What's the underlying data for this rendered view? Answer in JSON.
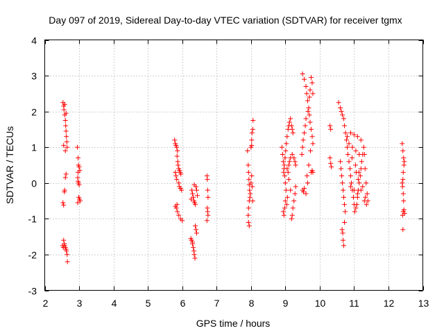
{
  "chart_data": {
    "type": "scatter",
    "title": "Day 097 of 2019, Sidereal Day-to-day VTEC variation (SDTVAR) for receiver tgmx",
    "xlabel": "GPS time / hours",
    "ylabel": "SDTVAR / TECUs",
    "xlim": [
      2,
      13
    ],
    "ylim": [
      -3,
      4
    ],
    "xticks": [
      "2",
      "3",
      "4",
      "5",
      "6",
      "7",
      "8",
      "9",
      "10",
      "11",
      "12",
      "13"
    ],
    "yticks": [
      "-3",
      "-2",
      "-1",
      "0",
      "1",
      "2",
      "3",
      "4"
    ],
    "grid": true,
    "marker": "+",
    "marker_color": "#ff0000",
    "series": [
      {
        "name": "SDTVAR",
        "points": [
          [
            2.53,
            2.25
          ],
          [
            2.55,
            2.15
          ],
          [
            2.56,
            2.05
          ],
          [
            2.58,
            1.9
          ],
          [
            2.6,
            1.75
          ],
          [
            2.61,
            1.6
          ],
          [
            2.62,
            1.45
          ],
          [
            2.63,
            1.3
          ],
          [
            2.64,
            1.15
          ],
          [
            2.65,
            1.0
          ],
          [
            2.58,
            2.2
          ],
          [
            2.62,
            1.95
          ],
          [
            2.55,
            1.05
          ],
          [
            2.6,
            0.9
          ],
          [
            2.62,
            0.25
          ],
          [
            2.6,
            0.15
          ],
          [
            2.58,
            -0.2
          ],
          [
            2.57,
            -0.25
          ],
          [
            2.53,
            -0.55
          ],
          [
            2.55,
            -0.62
          ],
          [
            2.55,
            -1.6
          ],
          [
            2.57,
            -1.7
          ],
          [
            2.58,
            -1.75
          ],
          [
            2.6,
            -1.8
          ],
          [
            2.62,
            -1.85
          ],
          [
            2.63,
            -1.9
          ],
          [
            2.65,
            -2.0
          ],
          [
            2.66,
            -2.2
          ],
          [
            2.52,
            -1.75
          ],
          [
            2.54,
            -1.8
          ],
          [
            2.95,
            1.0
          ],
          [
            2.97,
            0.7
          ],
          [
            2.98,
            0.5
          ],
          [
            3.0,
            0.45
          ],
          [
            3.02,
            0.35
          ],
          [
            2.97,
            0.3
          ],
          [
            2.96,
            0.15
          ],
          [
            2.97,
            0.05
          ],
          [
            2.98,
            0.0
          ],
          [
            3.0,
            -0.05
          ],
          [
            2.99,
            -0.4
          ],
          [
            3.01,
            -0.45
          ],
          [
            3.03,
            -0.5
          ],
          [
            2.96,
            -0.55
          ],
          [
            5.78,
            1.2
          ],
          [
            5.8,
            1.1
          ],
          [
            5.82,
            1.05
          ],
          [
            5.84,
            1.0
          ],
          [
            5.86,
            0.9
          ],
          [
            5.85,
            0.75
          ],
          [
            5.87,
            0.6
          ],
          [
            5.88,
            0.5
          ],
          [
            5.9,
            0.4
          ],
          [
            5.92,
            0.35
          ],
          [
            5.94,
            0.3
          ],
          [
            5.96,
            0.25
          ],
          [
            5.8,
            0.3
          ],
          [
            5.82,
            0.2
          ],
          [
            5.84,
            0.1
          ],
          [
            5.9,
            0.0
          ],
          [
            5.92,
            -0.1
          ],
          [
            5.95,
            -0.15
          ],
          [
            5.98,
            -0.2
          ],
          [
            5.85,
            -0.6
          ],
          [
            5.83,
            -0.7
          ],
          [
            5.86,
            -0.8
          ],
          [
            5.9,
            -0.9
          ],
          [
            5.95,
            -1.0
          ],
          [
            6.0,
            -1.05
          ],
          [
            5.8,
            -0.65
          ],
          [
            6.25,
            -1.55
          ],
          [
            6.27,
            -1.6
          ],
          [
            6.3,
            -1.7
          ],
          [
            6.32,
            -1.8
          ],
          [
            6.34,
            -1.9
          ],
          [
            6.35,
            -2.0
          ],
          [
            6.37,
            -2.1
          ],
          [
            6.3,
            -1.65
          ],
          [
            6.28,
            -0.2
          ],
          [
            6.3,
            -0.3
          ],
          [
            6.32,
            -0.4
          ],
          [
            6.34,
            -0.5
          ],
          [
            6.36,
            -0.55
          ],
          [
            6.38,
            -0.6
          ],
          [
            6.4,
            -0.1
          ],
          [
            6.42,
            -0.2
          ],
          [
            6.44,
            -0.35
          ],
          [
            6.38,
            -1.2
          ],
          [
            6.4,
            -1.3
          ],
          [
            6.42,
            -1.4
          ],
          [
            6.35,
            -0.05
          ],
          [
            6.26,
            -0.45
          ],
          [
            6.72,
            0.2
          ],
          [
            6.73,
            0.1
          ],
          [
            6.74,
            -0.2
          ],
          [
            6.75,
            -0.4
          ],
          [
            6.73,
            -0.7
          ],
          [
            6.74,
            -0.8
          ],
          [
            6.75,
            -0.9
          ],
          [
            6.72,
            -1.05
          ],
          [
            7.9,
            0.9
          ],
          [
            7.92,
            0.5
          ],
          [
            7.93,
            0.3
          ],
          [
            7.94,
            0.1
          ],
          [
            7.95,
            -0.05
          ],
          [
            7.96,
            -0.2
          ],
          [
            7.97,
            -0.4
          ],
          [
            7.95,
            -0.5
          ],
          [
            7.93,
            -0.7
          ],
          [
            7.92,
            -0.9
          ],
          [
            7.93,
            -1.1
          ],
          [
            7.95,
            -1.2
          ],
          [
            7.98,
            -0.3
          ],
          [
            8.0,
            0.0
          ],
          [
            8.02,
            0.2
          ],
          [
            8.0,
            1.0
          ],
          [
            8.02,
            1.2
          ],
          [
            8.03,
            1.4
          ],
          [
            8.05,
            1.5
          ],
          [
            8.06,
            1.75
          ],
          [
            8.02,
            1.05
          ],
          [
            8.04,
            -0.1
          ],
          [
            8.05,
            -0.5
          ],
          [
            8.9,
            1.0
          ],
          [
            8.92,
            0.8
          ],
          [
            8.94,
            0.6
          ],
          [
            8.96,
            0.4
          ],
          [
            8.98,
            0.2
          ],
          [
            9.0,
            0.0
          ],
          [
            9.02,
            -0.2
          ],
          [
            9.0,
            -0.5
          ],
          [
            8.98,
            -0.7
          ],
          [
            8.96,
            -0.9
          ],
          [
            8.94,
            -0.8
          ],
          [
            8.95,
            0.3
          ],
          [
            8.97,
            0.5
          ],
          [
            8.99,
            0.7
          ],
          [
            9.01,
            0.9
          ],
          [
            9.03,
            1.1
          ],
          [
            9.05,
            1.3
          ],
          [
            9.08,
            1.5
          ],
          [
            9.1,
            1.6
          ],
          [
            9.12,
            1.7
          ],
          [
            9.15,
            1.8
          ],
          [
            9.18,
            1.6
          ],
          [
            9.2,
            1.5
          ],
          [
            9.22,
            1.4
          ],
          [
            9.05,
            0.4
          ],
          [
            9.08,
            0.3
          ],
          [
            9.1,
            0.5
          ],
          [
            9.12,
            0.6
          ],
          [
            9.15,
            0.7
          ],
          [
            9.2,
            0.8
          ],
          [
            9.25,
            0.7
          ],
          [
            9.28,
            0.6
          ],
          [
            9.3,
            0.5
          ],
          [
            9.3,
            -0.1
          ],
          [
            9.28,
            -0.3
          ],
          [
            9.25,
            -0.5
          ],
          [
            9.22,
            -0.7
          ],
          [
            9.2,
            -0.9
          ],
          [
            9.18,
            -1.0
          ],
          [
            9.15,
            -0.2
          ],
          [
            9.1,
            0.1
          ],
          [
            9.06,
            -0.4
          ],
          [
            9.04,
            -0.6
          ],
          [
            9.5,
            3.05
          ],
          [
            9.55,
            2.9
          ],
          [
            9.6,
            2.7
          ],
          [
            9.62,
            2.5
          ],
          [
            9.65,
            2.3
          ],
          [
            9.68,
            2.1
          ],
          [
            9.7,
            1.9
          ],
          [
            9.72,
            1.7
          ],
          [
            9.75,
            1.5
          ],
          [
            9.78,
            1.3
          ],
          [
            9.8,
            1.1
          ],
          [
            9.75,
            2.95
          ],
          [
            9.78,
            2.8
          ],
          [
            9.8,
            2.5
          ],
          [
            9.72,
            2.6
          ],
          [
            9.7,
            2.4
          ],
          [
            9.66,
            2.0
          ],
          [
            9.6,
            1.8
          ],
          [
            9.58,
            1.6
          ],
          [
            9.55,
            1.4
          ],
          [
            9.52,
            1.2
          ],
          [
            9.5,
            1.0
          ],
          [
            9.48,
            0.8
          ],
          [
            9.5,
            -0.2
          ],
          [
            9.53,
            -0.25
          ],
          [
            9.55,
            -0.15
          ],
          [
            9.6,
            -0.3
          ],
          [
            9.65,
            0.0
          ],
          [
            9.75,
            0.3
          ],
          [
            9.78,
            0.35
          ],
          [
            9.8,
            0.3
          ],
          [
            9.73,
            0.9
          ],
          [
            9.68,
            0.5
          ],
          [
            9.63,
            0.2
          ],
          [
            10.3,
            1.6
          ],
          [
            10.32,
            1.5
          ],
          [
            10.3,
            0.7
          ],
          [
            10.32,
            0.55
          ],
          [
            10.34,
            0.45
          ],
          [
            10.55,
            2.25
          ],
          [
            10.6,
            2.1
          ],
          [
            10.63,
            2.0
          ],
          [
            10.66,
            1.9
          ],
          [
            10.7,
            1.8
          ],
          [
            10.72,
            1.6
          ],
          [
            10.75,
            1.4
          ],
          [
            10.78,
            1.2
          ],
          [
            10.8,
            1.0
          ],
          [
            10.82,
            0.8
          ],
          [
            10.85,
            0.6
          ],
          [
            10.88,
            0.4
          ],
          [
            10.9,
            0.2
          ],
          [
            10.92,
            0.0
          ],
          [
            10.95,
            -0.2
          ],
          [
            10.98,
            -0.4
          ],
          [
            11.0,
            -0.6
          ],
          [
            11.02,
            -0.8
          ],
          [
            11.05,
            -0.7
          ],
          [
            11.08,
            -0.6
          ],
          [
            11.1,
            -0.4
          ],
          [
            11.12,
            -0.2
          ],
          [
            11.15,
            0.0
          ],
          [
            11.18,
            0.2
          ],
          [
            11.2,
            0.4
          ],
          [
            11.22,
            0.6
          ],
          [
            11.25,
            0.8
          ],
          [
            11.28,
            1.0
          ],
          [
            11.3,
            0.8
          ],
          [
            11.32,
            0.4
          ],
          [
            11.35,
            0.0
          ],
          [
            11.38,
            -0.3
          ],
          [
            11.4,
            -0.5
          ],
          [
            10.6,
            0.6
          ],
          [
            10.62,
            0.4
          ],
          [
            10.64,
            0.2
          ],
          [
            10.66,
            0.0
          ],
          [
            10.68,
            -0.2
          ],
          [
            10.7,
            -0.4
          ],
          [
            10.72,
            -0.6
          ],
          [
            10.74,
            -0.8
          ],
          [
            10.65,
            -1.3
          ],
          [
            10.67,
            -1.4
          ],
          [
            10.68,
            -1.6
          ],
          [
            10.7,
            -1.75
          ],
          [
            10.72,
            -1.1
          ],
          [
            10.8,
            1.3
          ],
          [
            10.9,
            1.4
          ],
          [
            11.0,
            1.35
          ],
          [
            11.1,
            1.3
          ],
          [
            11.2,
            1.2
          ],
          [
            10.85,
            1.1
          ],
          [
            10.95,
            1.0
          ],
          [
            11.05,
            0.9
          ],
          [
            11.15,
            0.8
          ],
          [
            10.9,
            -0.1
          ],
          [
            11.0,
            -0.2
          ],
          [
            11.1,
            -0.3
          ],
          [
            11.2,
            -0.2
          ],
          [
            11.25,
            -0.1
          ],
          [
            11.3,
            -0.5
          ],
          [
            11.33,
            -0.4
          ],
          [
            11.36,
            -0.6
          ],
          [
            11.06,
            0.3
          ],
          [
            11.12,
            0.1
          ],
          [
            10.94,
            0.7
          ],
          [
            11.04,
            0.5
          ],
          [
            11.14,
            0.3
          ],
          [
            12.4,
            1.1
          ],
          [
            12.42,
            0.9
          ],
          [
            12.44,
            0.7
          ],
          [
            12.45,
            0.5
          ],
          [
            12.43,
            0.3
          ],
          [
            12.42,
            0.1
          ],
          [
            12.4,
            0.0
          ],
          [
            12.41,
            -0.1
          ],
          [
            12.43,
            -0.3
          ],
          [
            12.44,
            -0.5
          ],
          [
            12.45,
            -0.75
          ],
          [
            12.43,
            -0.8
          ],
          [
            12.41,
            -0.9
          ],
          [
            12.42,
            -1.3
          ],
          [
            12.46,
            0.6
          ],
          [
            12.47,
            -0.85
          ]
        ]
      }
    ]
  }
}
